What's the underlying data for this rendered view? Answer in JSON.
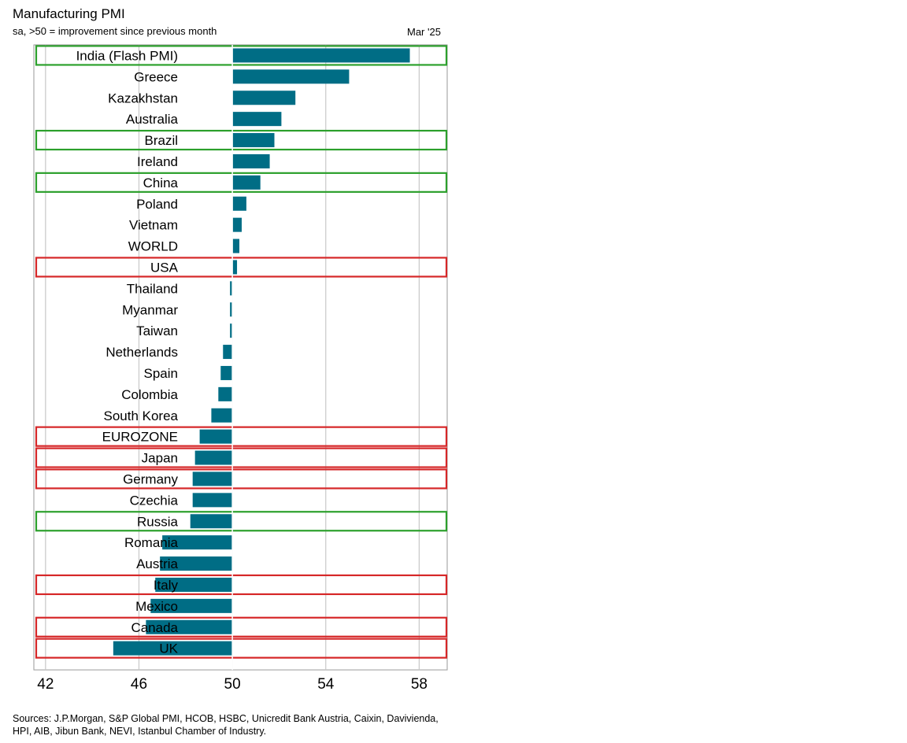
{
  "header": {
    "title": "Manufacturing PMI",
    "subtitle": "sa, >50 = improvement since previous month",
    "period": "Mar '25"
  },
  "footer": {
    "sources": "Sources: J.P.Morgan, S&P Global PMI, HCOB, HSBC, Unicredit Bank Austria, Caixin, Davivienda, HPI, AIB, Jibun Bank, NEVI, Istanbul Chamber of Industry."
  },
  "colors": {
    "bar": "#006d85",
    "highlight_green": "#2ca02c",
    "highlight_red": "#d62728",
    "grid": "#c8c8c8"
  },
  "chart_data": {
    "type": "bar",
    "orientation": "horizontal",
    "baseline": 50,
    "xlim": [
      41.5,
      59.2
    ],
    "xticks": [
      42,
      46,
      50,
      54,
      58
    ],
    "grid": true,
    "categories": [
      "India (Flash PMI)",
      "Greece",
      "Kazakhstan",
      "Australia",
      "Brazil",
      "Ireland",
      "China",
      "Poland",
      "Vietnam",
      "WORLD",
      "USA",
      "Thailand",
      "Myanmar",
      "Taiwan",
      "Netherlands",
      "Spain",
      "Colombia",
      "South Korea",
      "EUROZONE",
      "Japan",
      "Germany",
      "Czechia",
      "Russia",
      "Romania",
      "Austria",
      "Italy",
      "Mexico",
      "Canada",
      "UK"
    ],
    "values": [
      57.6,
      55.0,
      52.7,
      52.1,
      51.8,
      51.6,
      51.2,
      50.6,
      50.4,
      50.3,
      50.2,
      49.9,
      49.9,
      49.9,
      49.6,
      49.5,
      49.4,
      49.1,
      48.6,
      48.4,
      48.3,
      48.3,
      48.2,
      47.0,
      46.9,
      46.7,
      46.5,
      46.3,
      44.9
    ],
    "highlights": [
      "green",
      null,
      null,
      null,
      "green",
      null,
      "green",
      null,
      null,
      null,
      "red",
      null,
      null,
      null,
      null,
      null,
      null,
      null,
      "red",
      "red",
      "red",
      null,
      "green",
      null,
      null,
      "red",
      null,
      "red",
      "red"
    ]
  }
}
